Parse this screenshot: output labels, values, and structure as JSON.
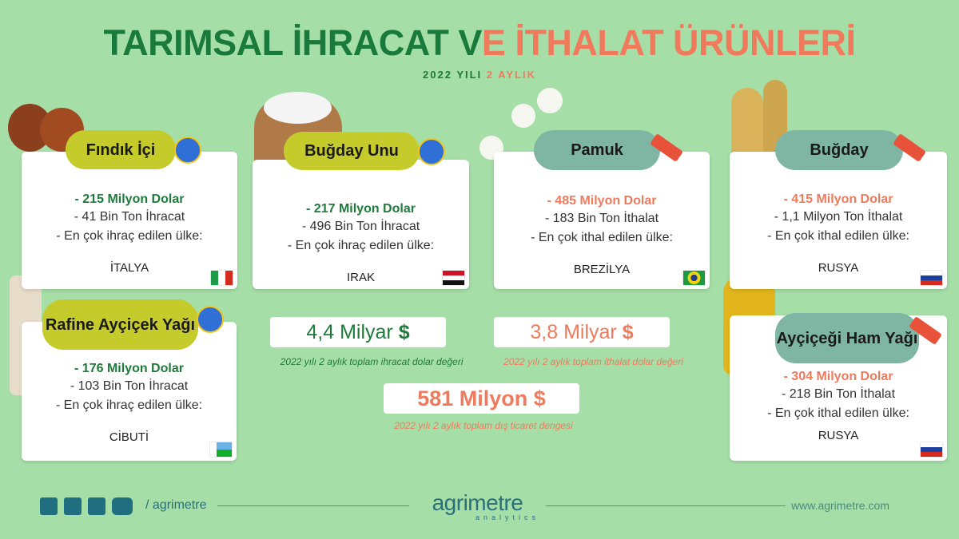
{
  "header": {
    "title_export": "TARIMSAL İHRACAT V",
    "title_import": "E İTHALAT ÜRÜNLERİ",
    "subtitle_year": "2022 YILI",
    "subtitle_period": "2 AYLIK"
  },
  "products": [
    {
      "name": "Fındık İçi",
      "color": "#1e7b3a",
      "value": "- 215 Milyon Dolar",
      "quantity": "- 41 Bin Ton İhracat",
      "label": "- En çok ihraç edilen ülke:",
      "country": "İTALYA"
    },
    {
      "name": "Buğday Unu",
      "color": "#1e7b3a",
      "value": "- 217 Milyon Dolar",
      "quantity": "- 496 Bin Ton İhracat",
      "label": "- En çok ihraç edilen ülke:",
      "country": "IRAK"
    },
    {
      "name": "Pamuk",
      "color": "#f07a5c",
      "value": "- 485 Milyon Dolar",
      "quantity": "- 183 Bin Ton İthalat",
      "label": "- En çok ithal edilen ülke:",
      "country": "BREZİLYA"
    },
    {
      "name": "Buğday",
      "color": "#f07a5c",
      "value": "- 415 Milyon Dolar",
      "quantity": "- 1,1 Milyon Ton İthalat",
      "label": "- En çok ithal edilen ülke:",
      "country": "RUSYA"
    },
    {
      "name": "Rafine Ayçiçek Yağı",
      "color": "#1e7b3a",
      "value": "- 176 Milyon Dolar",
      "quantity": "- 103 Bin Ton İhracat",
      "label": "- En çok ihraç edilen ülke:",
      "country": "CİBUTİ"
    },
    {
      "name": "Ayçiçeği Ham Yağı",
      "color": "#f07a5c",
      "value": "- 304 Milyon Dolar",
      "quantity": "- 218 Bin Ton İthalat",
      "label": "- En çok ithal edilen ülke:",
      "country": "RUSYA"
    }
  ],
  "totals": [
    {
      "amount": "4,4 Milyar",
      "currency": "$",
      "color": "#1e7b3a",
      "caption": "2022 yılı 2 aylık toplam ihracat dolar değeri"
    },
    {
      "amount": "3,8 Milyar",
      "currency": "$",
      "color": "#f07a5c",
      "caption": "2022 yılı 2 aylık toplam ithalat dolar değeri"
    },
    {
      "amount": "581 Milyon",
      "currency": "$",
      "color": "#f07a5c",
      "caption": "2022 yılı 2 aylık toplam dış ticaret dengesi"
    }
  ],
  "footer": {
    "handle": "/ agrimetre",
    "logo": "agrimetre",
    "logo_sub": "analytics",
    "website": "www.agrimetre.com"
  }
}
